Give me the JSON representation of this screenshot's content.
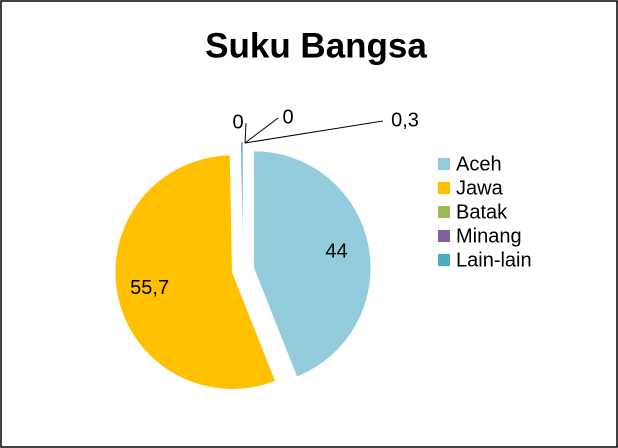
{
  "chart_data": {
    "type": "pie",
    "title": "Suku Bangsa",
    "categories": [
      "Aceh",
      "Jawa",
      "Batak",
      "Minang",
      "Lain-lain"
    ],
    "values": [
      44,
      55.7,
      0,
      0,
      0.3
    ],
    "value_labels": [
      "44",
      "55,7",
      "0",
      "0",
      "0,3"
    ],
    "colors": [
      "#93cddd",
      "#ffc000",
      "#9bbb59",
      "#8064a2",
      "#4bacc6"
    ],
    "legend": "right"
  }
}
